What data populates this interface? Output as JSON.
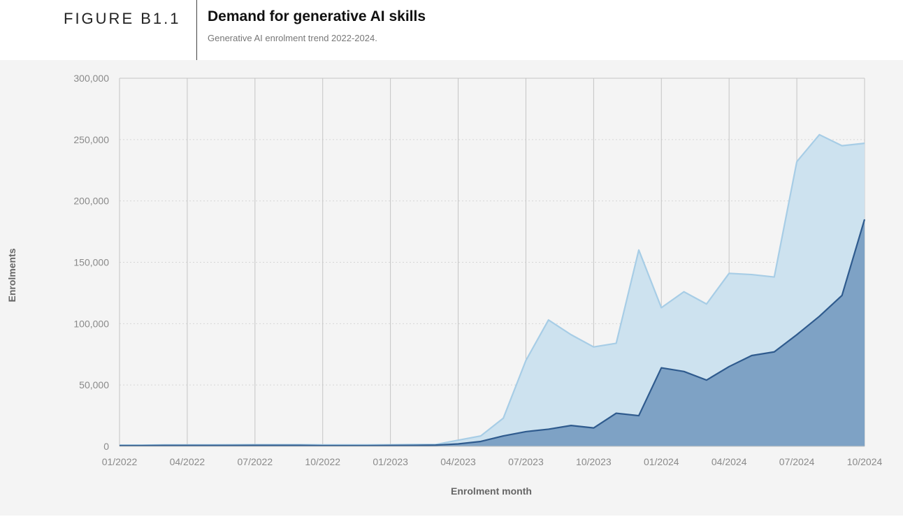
{
  "figure": {
    "label": "FIGURE B1.1",
    "title": "Demand for generative AI skills",
    "subtitle": "Generative AI enrolment trend 2022-2024."
  },
  "colors": {
    "light_fill": "#cde2ef",
    "light_line": "#a7cde6",
    "dark_fill": "#7ea2c5",
    "dark_line": "#2f5b8e",
    "grid_vertical": "#c4c4c4",
    "grid_horizontal": "#d6d6d6",
    "tick_text": "#8a8a8a",
    "axis_label_text": "#666666"
  },
  "chart_data": {
    "type": "area",
    "xlabel": "Enrolment month",
    "ylabel": "Enrolments",
    "ylim": [
      0,
      300000
    ],
    "yticks": [
      0,
      50000,
      100000,
      150000,
      200000,
      250000,
      300000
    ],
    "ytick_labels": [
      "0",
      "50,000",
      "100,000",
      "150,000",
      "200,000",
      "250,000",
      "300,000"
    ],
    "xtick_labels": [
      "01/2022",
      "04/2022",
      "07/2022",
      "10/2022",
      "01/2023",
      "04/2023",
      "07/2023",
      "10/2023",
      "01/2024",
      "04/2024",
      "07/2024",
      "10/2024"
    ],
    "xtick_index": [
      0,
      3,
      6,
      9,
      12,
      15,
      18,
      21,
      24,
      27,
      30,
      33
    ],
    "grid": "vertical solid at ticks, horizontal dotted",
    "x": [
      "01/2022",
      "02/2022",
      "03/2022",
      "04/2022",
      "05/2022",
      "06/2022",
      "07/2022",
      "08/2022",
      "09/2022",
      "10/2022",
      "11/2022",
      "12/2022",
      "01/2023",
      "02/2023",
      "03/2023",
      "04/2023",
      "05/2023",
      "06/2023",
      "07/2023",
      "08/2023",
      "09/2023",
      "10/2023",
      "11/2023",
      "12/2023",
      "01/2024",
      "02/2024",
      "03/2024",
      "04/2024",
      "05/2024",
      "06/2024",
      "07/2024",
      "08/2024",
      "09/2024",
      "10/2024"
    ],
    "series": [
      {
        "values": [
          1000,
          1000,
          1200,
          1200,
          1200,
          1300,
          1400,
          1400,
          1400,
          1200,
          1200,
          1200,
          1300,
          1500,
          1500,
          5000,
          8500,
          23000,
          70000,
          103000,
          91000,
          81000,
          84000,
          160000,
          113000,
          126000,
          116000,
          141000,
          140000,
          138000,
          232000,
          254000,
          245000,
          247000
        ]
      },
      {
        "values": [
          600,
          600,
          700,
          700,
          700,
          700,
          800,
          800,
          800,
          600,
          600,
          600,
          700,
          800,
          1000,
          2000,
          4000,
          8500,
          12000,
          14000,
          17000,
          15000,
          27000,
          25000,
          64000,
          61000,
          54000,
          65000,
          74000,
          77000,
          91000,
          106000,
          123000,
          185000
        ]
      }
    ]
  }
}
